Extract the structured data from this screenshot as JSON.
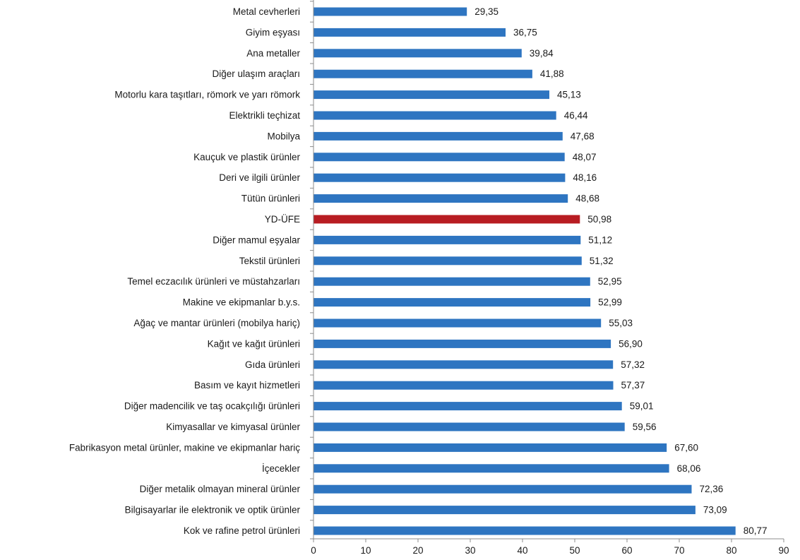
{
  "chart_data": {
    "type": "bar",
    "orientation": "horizontal",
    "categories": [
      "Metal cevherleri",
      "Giyim eşyası",
      "Ana metaller",
      "Diğer ulaşım araçları",
      "Motorlu kara taşıtları, römork ve yarı römork",
      "Elektrikli teçhizat",
      "Mobilya",
      "Kauçuk ve plastik ürünler",
      "Deri ve ilgili ürünler",
      "Tütün ürünleri",
      "YD-ÜFE",
      "Diğer mamul eşyalar",
      "Tekstil ürünleri",
      "Temel eczacılık ürünleri ve müstahzarları",
      "Makine ve ekipmanlar b.y.s.",
      "Ağaç ve mantar ürünleri (mobilya hariç)",
      "Kağıt ve kağıt ürünleri",
      "Gıda ürünleri",
      "Basım ve kayıt hizmetleri",
      "Diğer madencilik ve taş ocakçılığı ürünleri",
      "Kimyasallar ve kimyasal ürünler",
      "Fabrikasyon metal ürünler, makine ve ekipmanlar hariç",
      "İçecekler",
      "Diğer metalik olmayan mineral ürünler",
      "Bilgisayarlar ile elektronik ve optik ürünler",
      "Kok ve rafine petrol ürünleri"
    ],
    "values": [
      29.35,
      36.75,
      39.84,
      41.88,
      45.13,
      46.44,
      47.68,
      48.07,
      48.16,
      48.68,
      50.98,
      51.12,
      51.32,
      52.95,
      52.99,
      55.03,
      56.9,
      57.32,
      57.37,
      59.01,
      59.56,
      67.6,
      68.06,
      72.36,
      73.09,
      80.77
    ],
    "value_labels": [
      "29,35",
      "36,75",
      "39,84",
      "41,88",
      "45,13",
      "46,44",
      "47,68",
      "48,07",
      "48,16",
      "48,68",
      "50,98",
      "51,12",
      "51,32",
      "52,95",
      "52,99",
      "55,03",
      "56,90",
      "57,32",
      "57,37",
      "59,01",
      "59,56",
      "67,60",
      "68,06",
      "72,36",
      "73,09",
      "80,77"
    ],
    "highlight_category": "YD-ÜFE",
    "colors": {
      "bar": "#2e75c1",
      "highlight": "#b81c22",
      "axis": "#8c8c8c"
    },
    "xlim": [
      0,
      90
    ],
    "xticks": [
      0,
      10,
      20,
      30,
      40,
      50,
      60,
      70,
      80,
      90
    ],
    "title": "",
    "xlabel": "",
    "ylabel": "",
    "grid": false,
    "legend": "none"
  }
}
